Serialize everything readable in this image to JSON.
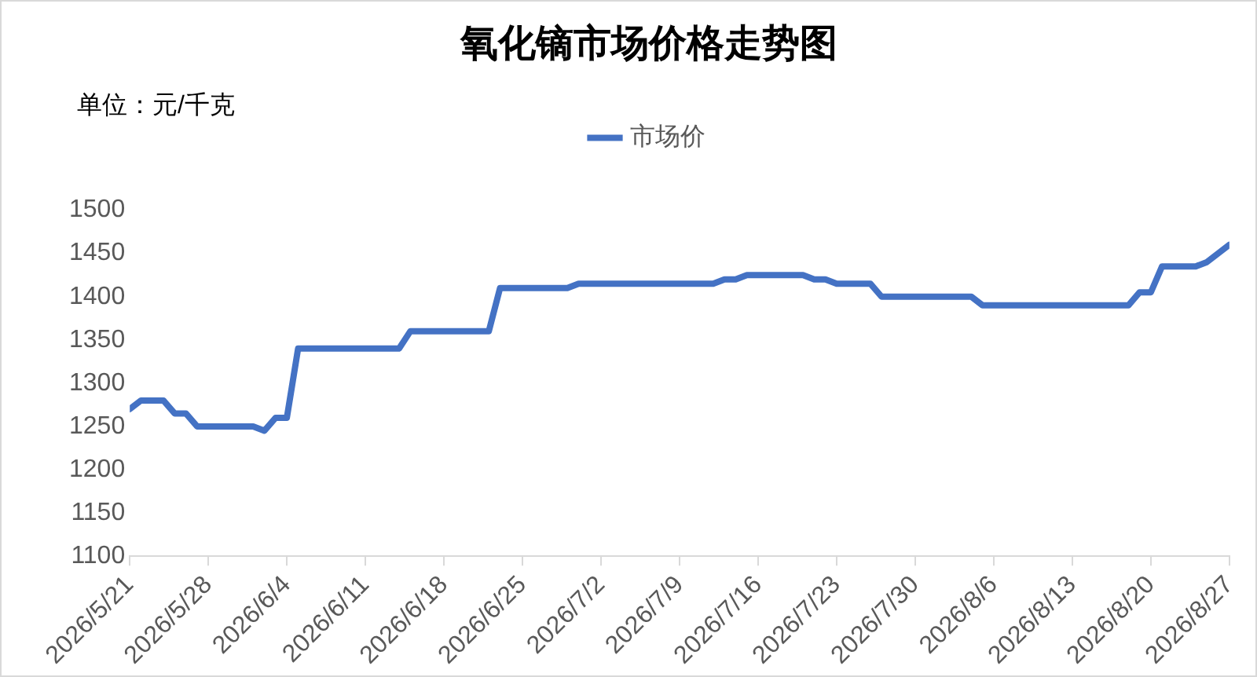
{
  "chart_data": {
    "type": "line",
    "title": "氧化镝市场价格走势图",
    "annotations": [
      "单位：元/千克"
    ],
    "x": [
      "2026-05-21",
      "2026-05-22",
      "2026-05-24",
      "2026-05-25",
      "2026-05-26",
      "2026-05-27",
      "2026-06-01",
      "2026-06-02",
      "2026-06-03",
      "2026-06-04",
      "2026-06-05",
      "2026-06-14",
      "2026-06-15",
      "2026-06-22",
      "2026-06-23",
      "2026-06-29",
      "2026-06-30",
      "2026-07-12",
      "2026-07-13",
      "2026-07-14",
      "2026-07-15",
      "2026-07-20",
      "2026-07-21",
      "2026-07-22",
      "2026-07-23",
      "2026-07-26",
      "2026-07-27",
      "2026-08-04",
      "2026-08-05",
      "2026-08-18",
      "2026-08-19",
      "2026-08-20",
      "2026-08-21",
      "2026-08-24",
      "2026-08-25",
      "2026-08-26",
      "2026-08-27"
    ],
    "series": [
      {
        "name": "市场价",
        "color": "#4472c4",
        "values": [
          1270,
          1280,
          1280,
          1265,
          1265,
          1250,
          1250,
          1245,
          1260,
          1260,
          1340,
          1340,
          1360,
          1360,
          1410,
          1410,
          1415,
          1415,
          1420,
          1420,
          1425,
          1425,
          1420,
          1420,
          1415,
          1415,
          1400,
          1400,
          1390,
          1390,
          1405,
          1405,
          1435,
          1435,
          1440,
          1450,
          1460
        ]
      }
    ],
    "xlim": [
      "2026-05-21",
      "2026-08-27"
    ],
    "xticks": [
      {
        "value": "2026-05-21",
        "label": "2026/5/21"
      },
      {
        "value": "2026-05-28",
        "label": "2026/5/28"
      },
      {
        "value": "2026-06-04",
        "label": "2026/6/4"
      },
      {
        "value": "2026-06-11",
        "label": "2026/6/11"
      },
      {
        "value": "2026-06-18",
        "label": "2026/6/18"
      },
      {
        "value": "2026-06-25",
        "label": "2026/6/25"
      },
      {
        "value": "2026-07-02",
        "label": "2026/7/2"
      },
      {
        "value": "2026-07-09",
        "label": "2026/7/9"
      },
      {
        "value": "2026-07-16",
        "label": "2026/7/16"
      },
      {
        "value": "2026-07-23",
        "label": "2026/7/23"
      },
      {
        "value": "2026-07-30",
        "label": "2026/7/30"
      },
      {
        "value": "2026-08-06",
        "label": "2026/8/6"
      },
      {
        "value": "2026-08-13",
        "label": "2026/8/13"
      },
      {
        "value": "2026-08-20",
        "label": "2026/8/20"
      },
      {
        "value": "2026-08-27",
        "label": "2026/8/27"
      }
    ],
    "ylim": [
      1100,
      1500
    ],
    "yticks": [
      1100,
      1150,
      1200,
      1250,
      1300,
      1350,
      1400,
      1450,
      1500
    ],
    "grid": false,
    "legend": "top",
    "marker": "none",
    "line_style": "solid"
  }
}
